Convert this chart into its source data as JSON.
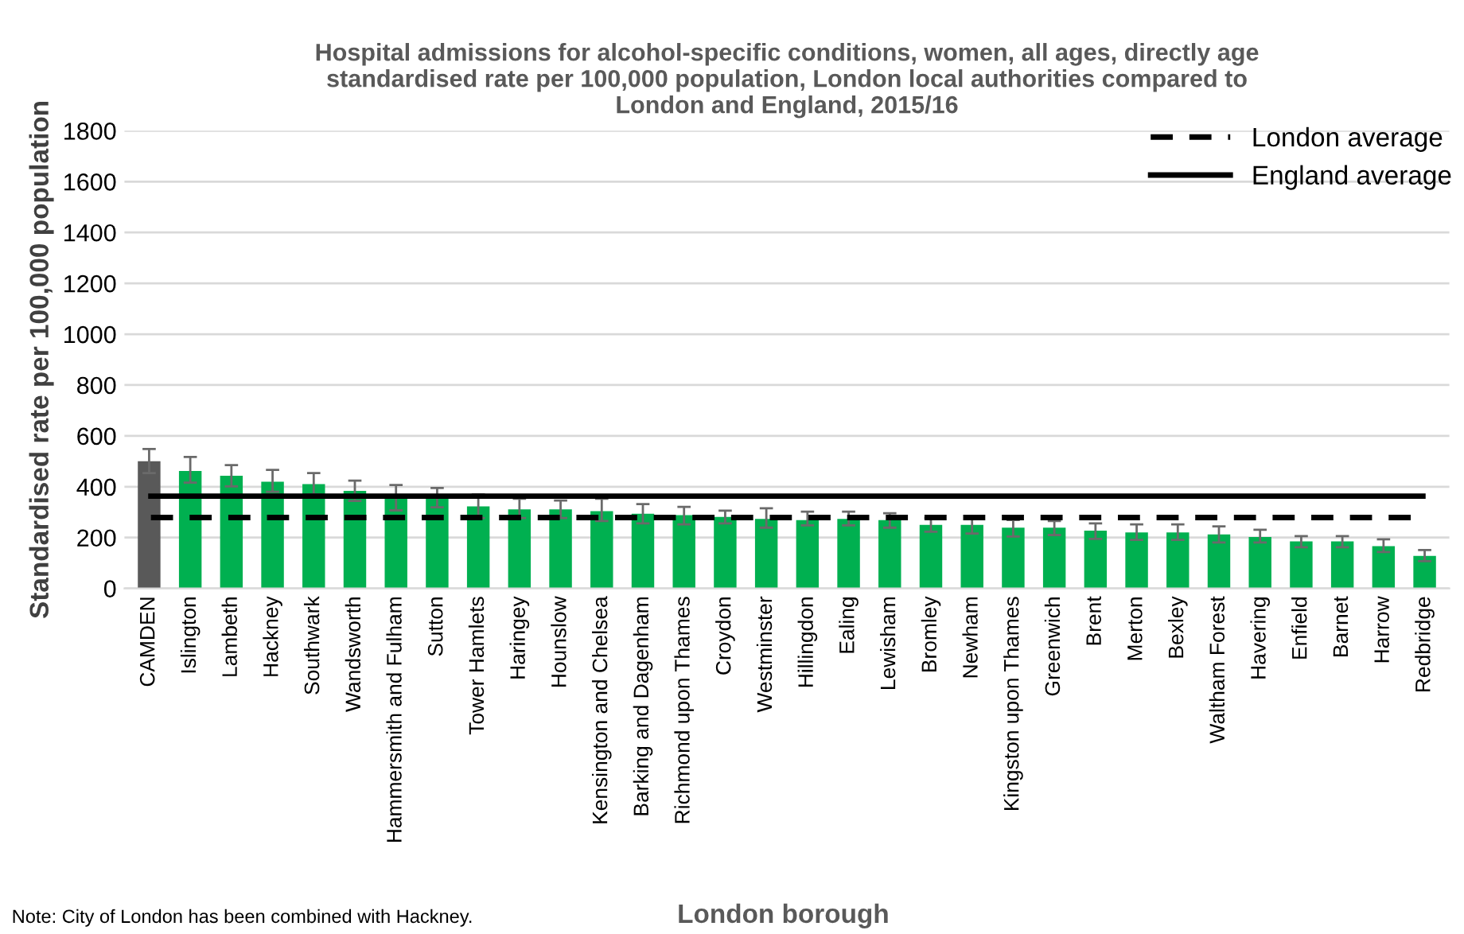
{
  "chart_data": {
    "type": "bar",
    "title": "Hospital admissions for alcohol-specific conditions, women, all ages, directly age\nstandardised rate per 100,000 population, London local authorities compared to\nLondon and England, 2015/16",
    "xlabel": "London borough",
    "ylabel": "Standardised rate per 100,000 population",
    "categories": [
      "CAMDEN",
      "Islington",
      "Lambeth",
      "Hackney",
      "Southwark",
      "Wandsworth",
      "Hammersmith and Fulham",
      "Sutton",
      "Tower Hamlets",
      "Haringey",
      "Hounslow",
      "Kensington and Chelsea",
      "Barking and Dagenham",
      "Richmond upon Thames",
      "Croydon",
      "Westminster",
      "Hillingdon",
      "Ealing",
      "Lewisham",
      "Bromley",
      "Newham",
      "Kingston upon Thames",
      "Greenwich",
      "Brent",
      "Merton",
      "Bexley",
      "Waltham Forest",
      "Havering",
      "Enfield",
      "Barnet",
      "Harrow",
      "Redbridge"
    ],
    "values": [
      500,
      462,
      443,
      420,
      410,
      384,
      363,
      363,
      323,
      311,
      311,
      304,
      294,
      288,
      281,
      273,
      269,
      273,
      269,
      250,
      250,
      239,
      239,
      227,
      220,
      220,
      212,
      202,
      185,
      185,
      166,
      128
    ],
    "errors": [
      [
        454,
        548
      ],
      [
        416,
        517
      ],
      [
        401,
        485
      ],
      [
        380,
        466
      ],
      [
        370,
        454
      ],
      [
        344,
        424
      ],
      [
        307,
        407
      ],
      [
        319,
        395
      ],
      [
        277,
        370
      ],
      [
        277,
        353
      ],
      [
        277,
        346
      ],
      [
        265,
        353
      ],
      [
        256,
        332
      ],
      [
        252,
        321
      ],
      [
        256,
        306
      ],
      [
        239,
        315
      ],
      [
        248,
        302
      ],
      [
        248,
        302
      ],
      [
        239,
        296
      ],
      [
        223,
        277
      ],
      [
        216,
        277
      ],
      [
        204,
        269
      ],
      [
        210,
        265
      ],
      [
        195,
        256
      ],
      [
        191,
        252
      ],
      [
        191,
        252
      ],
      [
        181,
        244
      ],
      [
        181,
        231
      ],
      [
        162,
        206
      ],
      [
        162,
        206
      ],
      [
        143,
        193
      ],
      [
        107,
        151
      ]
    ],
    "colors": [
      "#595959",
      "#00b050",
      "#00b050",
      "#00b050",
      "#00b050",
      "#00b050",
      "#00b050",
      "#00b050",
      "#00b050",
      "#00b050",
      "#00b050",
      "#00b050",
      "#00b050",
      "#00b050",
      "#00b050",
      "#00b050",
      "#00b050",
      "#00b050",
      "#00b050",
      "#00b050",
      "#00b050",
      "#00b050",
      "#00b050",
      "#00b050",
      "#00b050",
      "#00b050",
      "#00b050",
      "#00b050",
      "#00b050",
      "#00b050",
      "#00b050",
      "#00b050"
    ],
    "ylim": [
      0,
      1800
    ],
    "yticks": [
      0,
      200,
      400,
      600,
      800,
      1000,
      1200,
      1400,
      1600,
      1800
    ],
    "grid": "y",
    "legend": "top right",
    "ref_lines": [
      {
        "axis": "y",
        "value": 279,
        "label": "London average",
        "color": "#000000",
        "line_style": "dashed"
      },
      {
        "axis": "y",
        "value": 363,
        "label": "England average",
        "color": "#000000",
        "line_style": "solid"
      }
    ],
    "annotations": [
      "Note: City of London has been combined with Hackney."
    ]
  }
}
